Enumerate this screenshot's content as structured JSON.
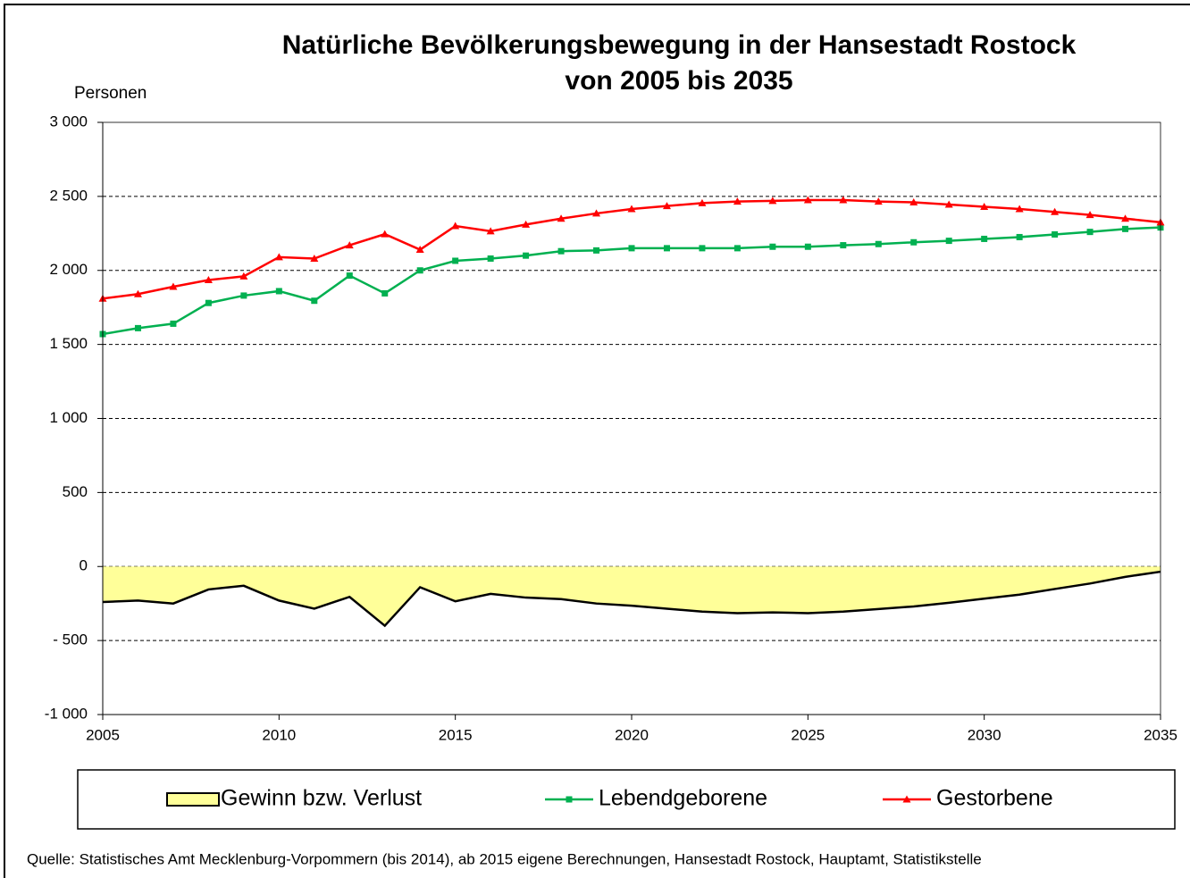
{
  "chart_data": {
    "type": "line",
    "title": [
      "Natürliche Bevölkerungsbewegung in der Hansestadt Rostock",
      "von 2005 bis 2035"
    ],
    "y_label": "Personen",
    "source": "Quelle: Statistisches Amt Mecklenburg-Vorpommern (bis 2014), ab 2015 eigene Berechnungen, Hansestadt Rostock, Hauptamt, Statistikstelle",
    "x": [
      2005,
      2006,
      2007,
      2008,
      2009,
      2010,
      2011,
      2012,
      2013,
      2014,
      2015,
      2016,
      2017,
      2018,
      2019,
      2020,
      2021,
      2022,
      2023,
      2024,
      2025,
      2026,
      2027,
      2028,
      2029,
      2030,
      2031,
      2032,
      2033,
      2034,
      2035
    ],
    "xlim": [
      2005,
      2035
    ],
    "xticks": [
      2005,
      2010,
      2015,
      2020,
      2025,
      2030,
      2035
    ],
    "ylim": [
      -1000,
      3000
    ],
    "yticks": [
      {
        "value": -1000,
        "label": "-1 000"
      },
      {
        "value": -500,
        "label": "- 500"
      },
      0,
      500,
      {
        "value": 1000,
        "label": "1 000"
      },
      {
        "value": 1500,
        "label": "1 500"
      },
      {
        "value": 2000,
        "label": "2 000"
      },
      {
        "value": 2500,
        "label": "2 500"
      },
      {
        "value": 3000,
        "label": "3 000"
      }
    ],
    "grid": true,
    "series": [
      {
        "name": "Gewinn bzw. Verlust",
        "type": "area",
        "color": "#ffff99",
        "values": [
          -240,
          -230,
          -250,
          -155,
          -130,
          -230,
          -285,
          -205,
          -400,
          -140,
          -235,
          -185,
          -210,
          -220,
          -250,
          -265,
          -285,
          -305,
          -315,
          -310,
          -315,
          -305,
          -287,
          -270,
          -245,
          -217,
          -190,
          -152,
          -115,
          -70,
          -35
        ]
      },
      {
        "name": "Lebendgeborene",
        "type": "line",
        "marker": "square",
        "color": "#00b050",
        "values": [
          1570,
          1610,
          1640,
          1780,
          1830,
          1860,
          1795,
          1965,
          1845,
          2000,
          2065,
          2080,
          2100,
          2130,
          2135,
          2150,
          2150,
          2150,
          2150,
          2160,
          2160,
          2170,
          2178,
          2190,
          2200,
          2213,
          2225,
          2243,
          2260,
          2280,
          2290
        ]
      },
      {
        "name": "Gestorbene",
        "type": "line",
        "marker": "triangle",
        "color": "#ff0000",
        "values": [
          1810,
          1840,
          1890,
          1935,
          1960,
          2090,
          2080,
          2170,
          2245,
          2140,
          2300,
          2265,
          2310,
          2350,
          2385,
          2415,
          2435,
          2455,
          2465,
          2470,
          2475,
          2475,
          2465,
          2460,
          2445,
          2430,
          2415,
          2395,
          2375,
          2350,
          2325
        ]
      }
    ]
  }
}
